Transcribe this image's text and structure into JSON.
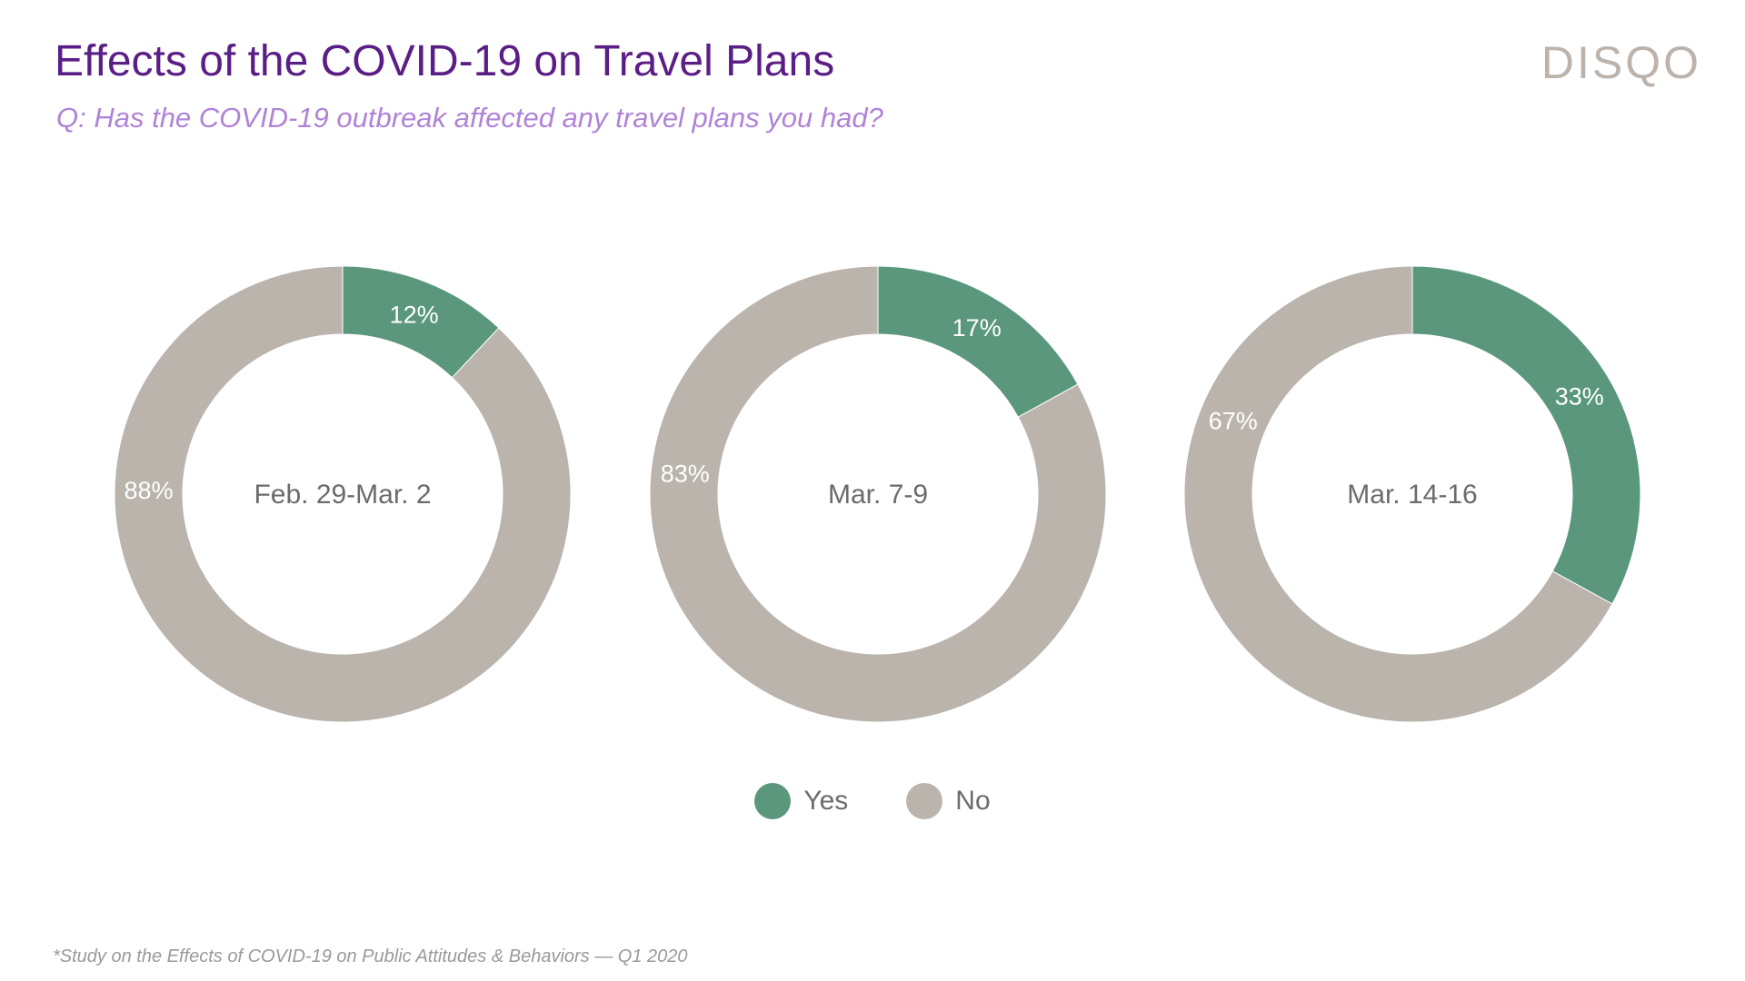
{
  "title": "Effects of the COVID-19 on Travel Plans",
  "subtitle": "Q: Has the COVID-19 outbreak affected any travel plans you had?",
  "logo": "DISQO",
  "footnote": "*Study on the Effects of COVID-19 on Public Attitudes & Behaviors — Q1 2020",
  "colors": {
    "yes": "#5a977d",
    "no": "#bab4ad",
    "title": "#5b1e86",
    "subtitle": "#b083d6"
  },
  "legend": [
    {
      "label": "Yes",
      "color": "#5a977d"
    },
    {
      "label": "No",
      "color": "#bab4ad"
    }
  ],
  "chart_data": [
    {
      "type": "pie",
      "center_label": "Feb. 29-Mar. 2",
      "categories": [
        "Yes",
        "No"
      ],
      "values": [
        12,
        88
      ],
      "labels": [
        "12%",
        "88%"
      ]
    },
    {
      "type": "pie",
      "center_label": "Mar. 7-9",
      "categories": [
        "Yes",
        "No"
      ],
      "values": [
        17,
        83
      ],
      "labels": [
        "17%",
        "83%"
      ]
    },
    {
      "type": "pie",
      "center_label": "Mar. 14-16",
      "categories": [
        "Yes",
        "No"
      ],
      "values": [
        33,
        67
      ],
      "labels": [
        "33%",
        "67%"
      ]
    }
  ]
}
